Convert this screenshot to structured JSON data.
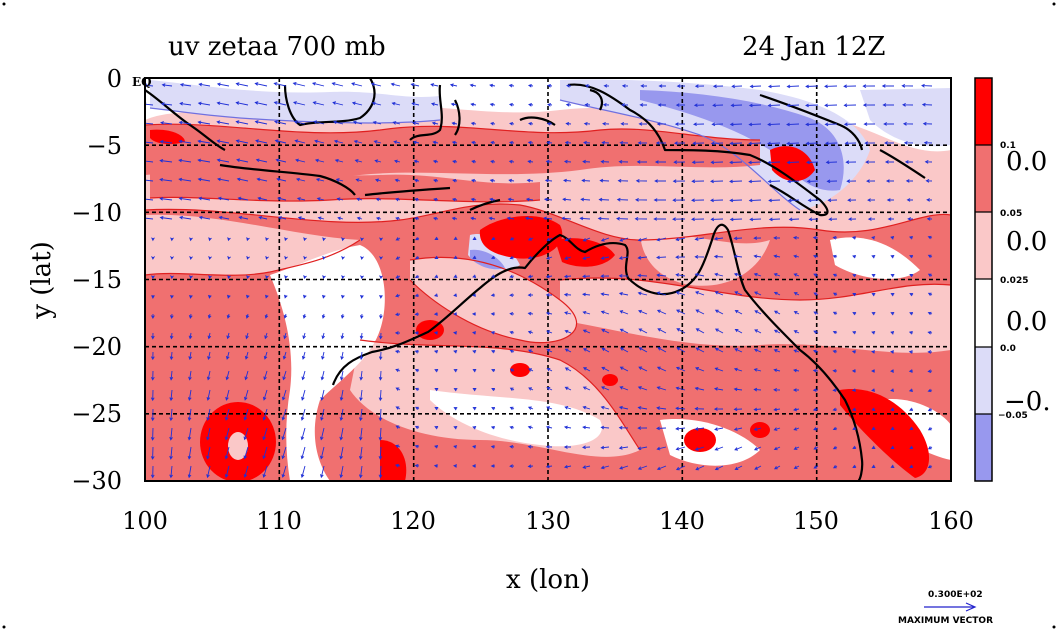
{
  "title": "uv zetaa 700 mb",
  "date_label": "24 Jan 12Z",
  "x_axis_label": "x (lon)",
  "y_axis_label": "y (lat)",
  "eq_label": "EQ",
  "x_ticks": [
    "100",
    "110",
    "120",
    "130",
    "140",
    "150",
    "160"
  ],
  "y_ticks": [
    "0",
    "−5",
    "−10",
    "−15",
    "−20",
    "−25",
    "−30"
  ],
  "colorbar": {
    "small_labels": [
      "0.1",
      "0.05",
      "0.025",
      "0.0",
      "−0.05"
    ],
    "large_labels": [
      "0.0",
      "0.0",
      "0.0",
      "−0."
    ],
    "colors": [
      "#ff0000",
      "#f07070",
      "#fac8c8",
      "#ffffff",
      "#dcdcf8",
      "#9898ee"
    ]
  },
  "vector_legend": {
    "value": "0.300E+02",
    "caption": "MAXIMUM VECTOR",
    "color": "#2222cc"
  },
  "colors": {
    "vector": "#1f2fd6",
    "coast": "#000000",
    "grid": "#000000",
    "pos_contour": "#e02020",
    "neg_contour": "#7070e0"
  }
}
